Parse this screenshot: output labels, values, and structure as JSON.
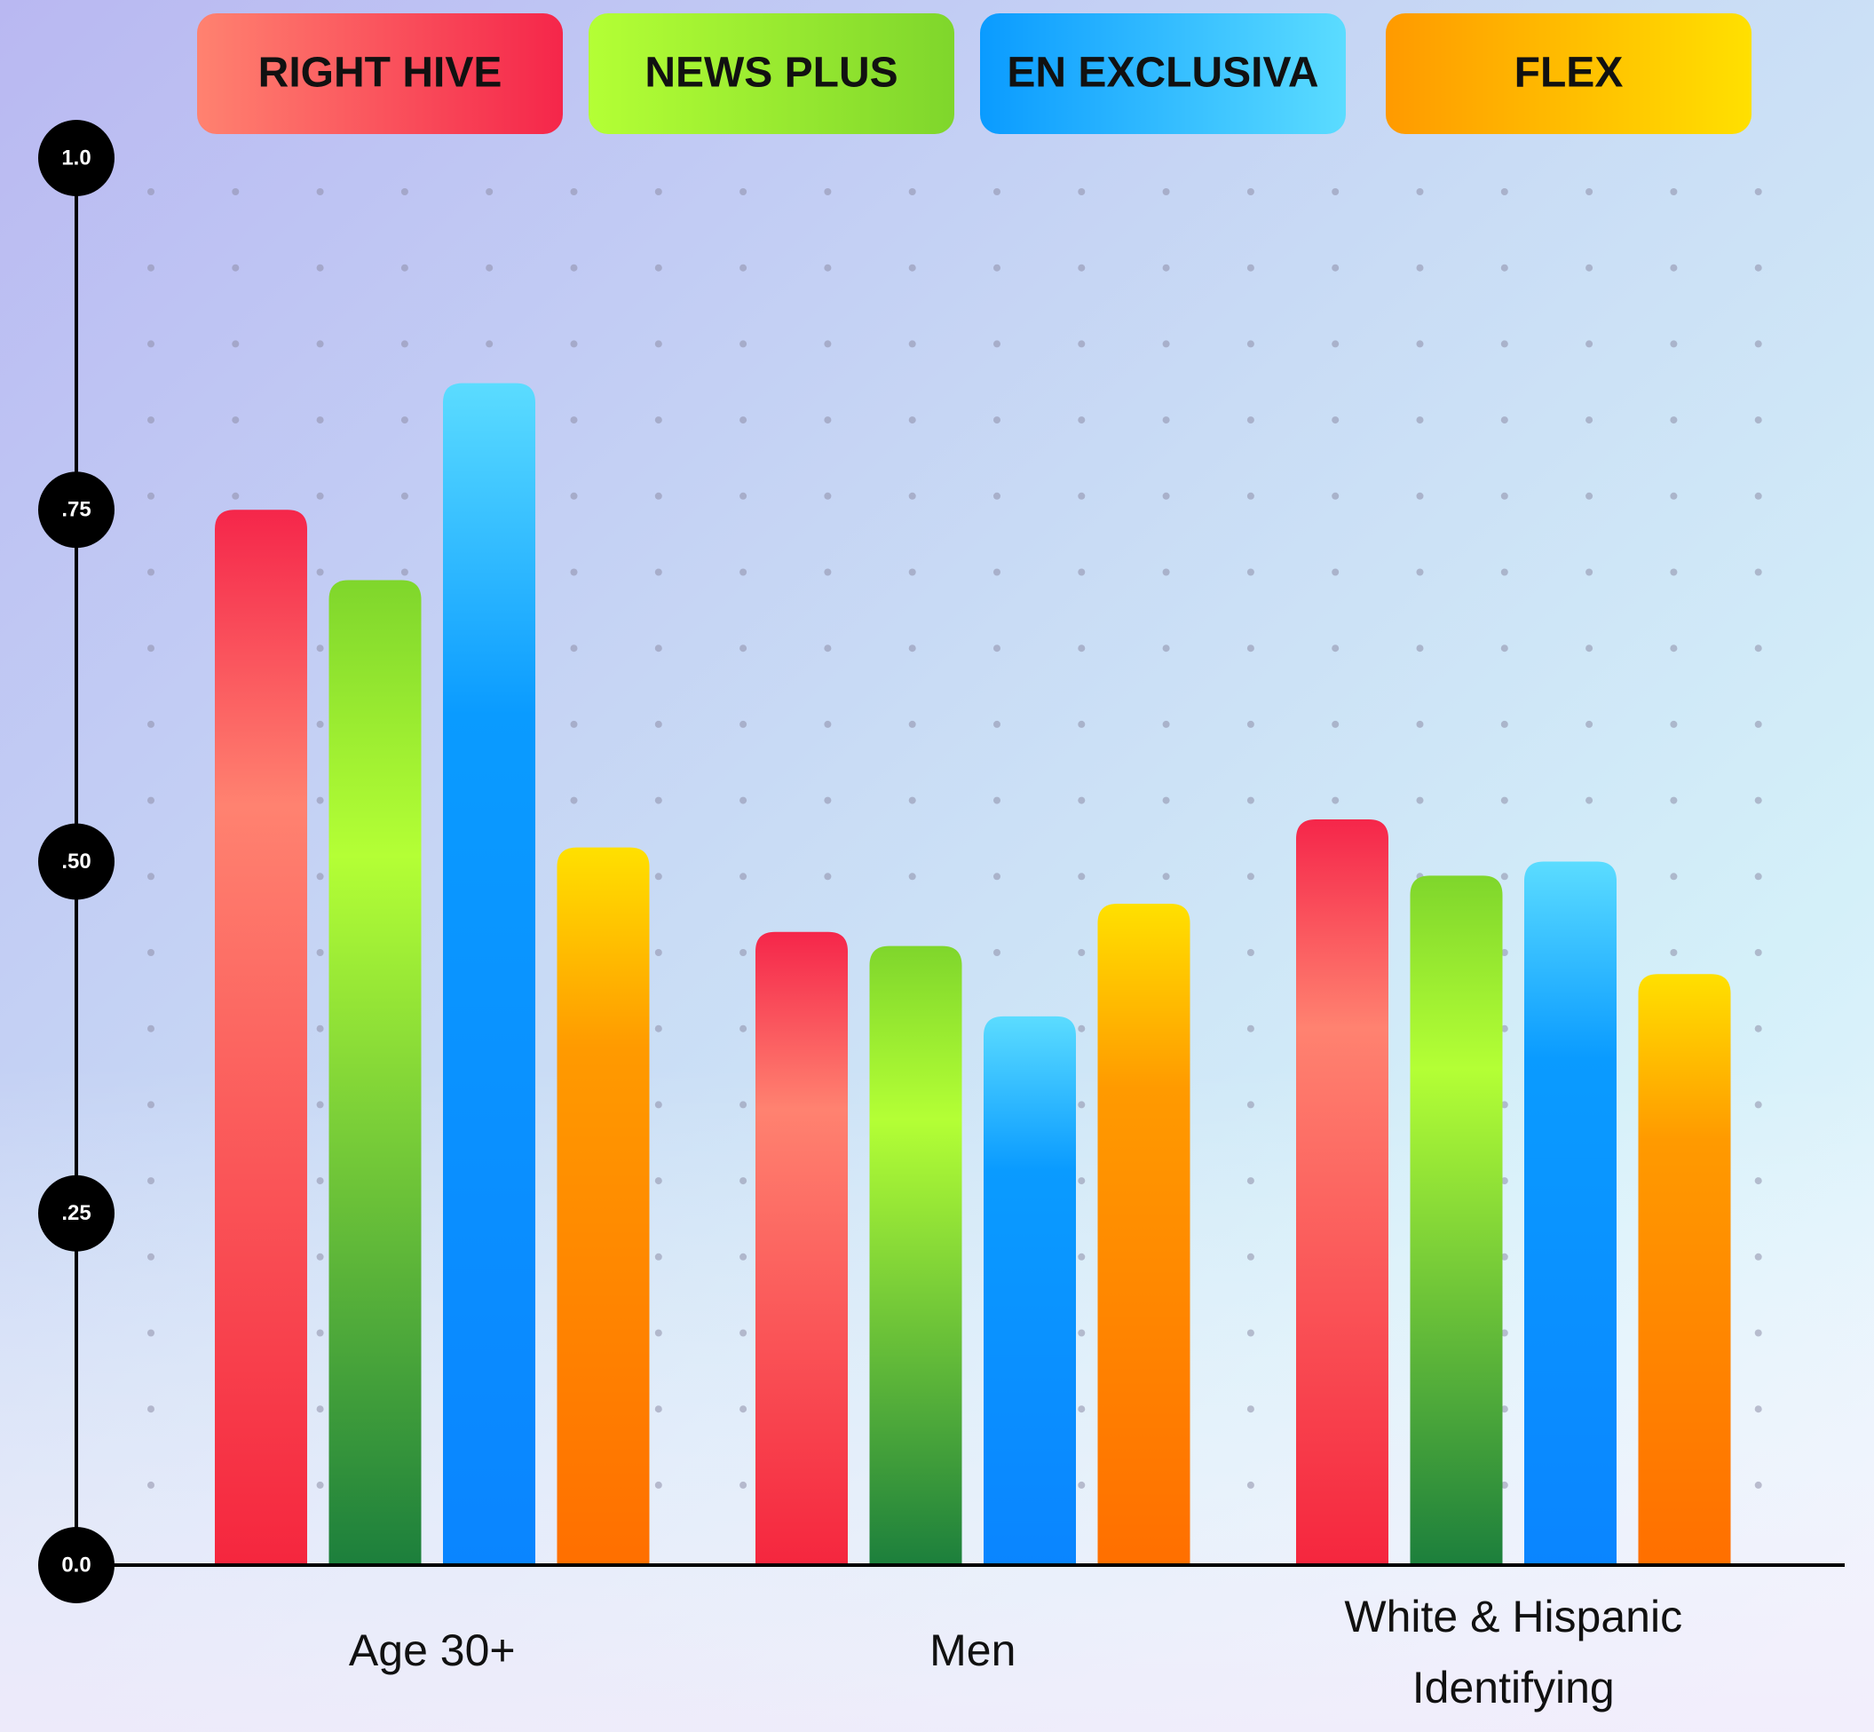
{
  "chart_data": {
    "type": "bar",
    "title": "",
    "xlabel": "",
    "ylabel": "",
    "categories": [
      "Age 30+",
      "Men",
      "White & Hispanic Identifying"
    ],
    "category_lines": [
      [
        "Age 30+"
      ],
      [
        "Men"
      ],
      [
        "White & Hispanic",
        "Identifying"
      ]
    ],
    "series": [
      {
        "name": "RIGHT HIVE",
        "values": [
          0.75,
          0.45,
          0.53
        ],
        "color_top": "#f5264a",
        "color_mid": "#ff8270",
        "color_bottom": "#f5263e"
      },
      {
        "name": "NEWS PLUS",
        "values": [
          0.7,
          0.44,
          0.49
        ],
        "color_top": "#7fd62c",
        "color_mid": "#b4ff35",
        "color_bottom": "#1c7f3c"
      },
      {
        "name": "EN EXCLUSIVA",
        "values": [
          0.84,
          0.39,
          0.5
        ],
        "color_top": "#5bdcff",
        "color_mid": "#0a9bff",
        "color_bottom": "#0a85ff"
      },
      {
        "name": "FLEX",
        "values": [
          0.51,
          0.47,
          0.42
        ],
        "color_top": "#ffe000",
        "color_mid": "#ff9a00",
        "color_bottom": "#ff6f00"
      }
    ],
    "y_ticks": [
      {
        "value": 0.0,
        "label": "0.0"
      },
      {
        "value": 0.25,
        "label": ".25"
      },
      {
        "value": 0.5,
        "label": ".50"
      },
      {
        "value": 0.75,
        "label": ".75"
      },
      {
        "value": 1.0,
        "label": "1.0"
      }
    ],
    "ylim": [
      0,
      1.0
    ],
    "grid": "dots",
    "legend_position": "top"
  }
}
